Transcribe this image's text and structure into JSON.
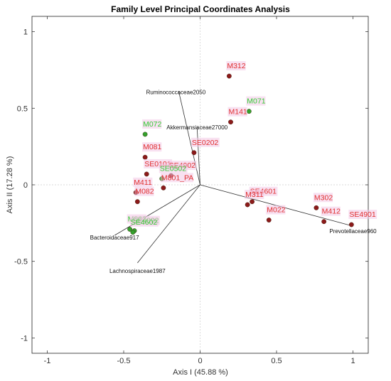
{
  "chart_data": {
    "type": "scatter",
    "title": "Family Level Principal Coordinates Analysis",
    "xlabel": "Axis I (45.88 %)",
    "ylabel": "Axis II (17.28 %)",
    "xlim": [
      -1.1,
      1.1
    ],
    "ylim": [
      -1.1,
      1.1
    ],
    "xticks": [
      -1,
      -0.5,
      0,
      0.5,
      1
    ],
    "yticks": [
      -1,
      -0.5,
      0,
      0.5,
      1
    ],
    "xtick_labels": [
      "-1",
      "-0.5",
      "0",
      "0.5",
      "1"
    ],
    "ytick_labels": [
      "-1",
      "-0.5",
      "0",
      "0.5",
      "1"
    ],
    "grid": false,
    "zero_lines": true,
    "colors": {
      "red_label": "#e03030",
      "green_label": "#33cc33",
      "red_marker": "#8b1a1a",
      "green_marker": "#33a02c",
      "label_bg": "#f2c8e6",
      "vector": "#333333"
    },
    "points": [
      {
        "label": "M312",
        "x": 0.19,
        "y": 0.71,
        "group": "red"
      },
      {
        "label": "M071",
        "x": 0.32,
        "y": 0.48,
        "group": "green"
      },
      {
        "label": "M141",
        "x": 0.2,
        "y": 0.41,
        "group": "red"
      },
      {
        "label": "M072",
        "x": -0.36,
        "y": 0.33,
        "group": "green"
      },
      {
        "label": "SE0202",
        "x": -0.04,
        "y": 0.21,
        "group": "red"
      },
      {
        "label": "M081",
        "x": -0.36,
        "y": 0.18,
        "group": "red"
      },
      {
        "label": "SE0101",
        "x": -0.35,
        "y": 0.07,
        "group": "red"
      },
      {
        "label": "SE4902",
        "x": -0.19,
        "y": 0.06,
        "group": "red"
      },
      {
        "label": "SE0502",
        "x": -0.25,
        "y": 0.04,
        "group": "green"
      },
      {
        "label": "M801_PA",
        "x": -0.24,
        "y": -0.02,
        "group": "red"
      },
      {
        "label": "M411",
        "x": -0.42,
        "y": -0.05,
        "group": "red"
      },
      {
        "label": "M082",
        "x": -0.41,
        "y": -0.11,
        "group": "red"
      },
      {
        "label": "SE4601",
        "x": 0.34,
        "y": -0.11,
        "group": "red"
      },
      {
        "label": "M311",
        "x": 0.31,
        "y": -0.13,
        "group": "red"
      },
      {
        "label": "M302",
        "x": 0.76,
        "y": -0.15,
        "group": "red"
      },
      {
        "label": "M022",
        "x": 0.45,
        "y": -0.23,
        "group": "red"
      },
      {
        "label": "M412",
        "x": 0.81,
        "y": -0.24,
        "group": "red"
      },
      {
        "label": "SE4901",
        "x": 0.99,
        "y": -0.26,
        "group": "red"
      },
      {
        "label": "M062",
        "x": -0.46,
        "y": -0.29,
        "group": "green"
      },
      {
        "label": "SE4002",
        "x": -0.43,
        "y": -0.3,
        "group": "green"
      },
      {
        "label": "SE4602",
        "x": -0.44,
        "y": -0.31,
        "group": "green"
      }
    ],
    "vectors": [
      {
        "label": "Ruminococcaceae2050",
        "x": -0.14,
        "y": 0.61
      },
      {
        "label": "Akkermansiaceae27000",
        "x": -0.02,
        "y": 0.38
      },
      {
        "label": "Bacteroidaceae917",
        "x": -0.56,
        "y": -0.33
      },
      {
        "label": "Lachnospiraceae1987",
        "x": -0.41,
        "y": -0.51
      },
      {
        "label": "Prevotellaceae960",
        "x": 1.0,
        "y": -0.27
      }
    ]
  }
}
